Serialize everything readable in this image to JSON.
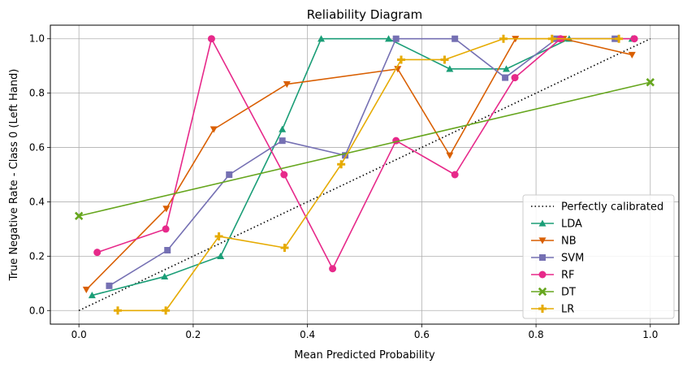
{
  "chart_data": {
    "type": "line",
    "title": "Reliability Diagram",
    "xlabel": "Mean Predicted Probability",
    "ylabel": "True Negative Rate - Class 0 (Left Hand)",
    "xlim": [
      -0.05,
      1.05
    ],
    "ylim": [
      -0.05,
      1.05
    ],
    "xticks": [
      0.0,
      0.2,
      0.4,
      0.6,
      0.8,
      1.0
    ],
    "xtick_labels": [
      "0.0",
      "0.2",
      "0.4",
      "0.6",
      "0.8",
      "1.0"
    ],
    "yticks": [
      0.0,
      0.2,
      0.4,
      0.6,
      0.8,
      1.0
    ],
    "ytick_labels": [
      "0.0",
      "0.2",
      "0.4",
      "0.6",
      "0.8",
      "1.0"
    ],
    "grid": true,
    "legend_position": "lower-right",
    "reference": {
      "name": "Perfectly calibrated",
      "x": [
        0,
        1
      ],
      "y": [
        0,
        1
      ],
      "color": "#000000",
      "style": "dotted"
    },
    "series": [
      {
        "name": "LDA",
        "color": "#1b9e77",
        "marker": "triangle-up",
        "x": [
          0.023,
          0.15,
          0.248,
          0.356,
          0.424,
          0.542,
          0.649,
          0.748,
          0.858,
          0.968
        ],
        "y": [
          0.056,
          0.125,
          0.2,
          0.667,
          1.0,
          1.0,
          0.889,
          0.889,
          1.0,
          1.0
        ]
      },
      {
        "name": "NB",
        "color": "#d95f02",
        "marker": "triangle-down",
        "x": [
          0.013,
          0.153,
          0.236,
          0.364,
          0.558,
          0.649,
          0.764,
          0.848,
          0.968
        ],
        "y": [
          0.077,
          0.375,
          0.667,
          0.833,
          0.889,
          0.571,
          1.0,
          1.0,
          0.941
        ]
      },
      {
        "name": "SVM",
        "color": "#7570b3",
        "marker": "square",
        "x": [
          0.053,
          0.155,
          0.263,
          0.356,
          0.466,
          0.555,
          0.658,
          0.746,
          0.836,
          0.938
        ],
        "y": [
          0.091,
          0.222,
          0.5,
          0.625,
          0.571,
          1.0,
          1.0,
          0.857,
          1.0,
          1.0
        ]
      },
      {
        "name": "RF",
        "color": "#e7298a",
        "marker": "circle",
        "x": [
          0.032,
          0.152,
          0.232,
          0.359,
          0.444,
          0.555,
          0.658,
          0.763,
          0.843,
          0.972
        ],
        "y": [
          0.214,
          0.3,
          1.0,
          0.5,
          0.154,
          0.625,
          0.5,
          0.857,
          1.0,
          1.0
        ]
      },
      {
        "name": "DT",
        "color": "#66a61e",
        "marker": "x",
        "x": [
          0.0,
          1.0
        ],
        "y": [
          0.348,
          0.84
        ]
      },
      {
        "name": "LR",
        "color": "#e6ab02",
        "marker": "plus",
        "x": [
          0.068,
          0.152,
          0.245,
          0.36,
          0.459,
          0.564,
          0.64,
          0.743,
          0.828,
          0.945
        ],
        "y": [
          0.0,
          0.0,
          0.273,
          0.231,
          0.538,
          0.923,
          0.923,
          1.0,
          1.0,
          1.0
        ]
      }
    ]
  }
}
